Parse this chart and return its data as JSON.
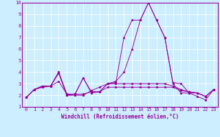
{
  "xlabel": "Windchill (Refroidissement éolien,°C)",
  "bg_color": "#cceeff",
  "line_color": "#990099",
  "grid_color": "#aaddcc",
  "xlim": [
    -0.5,
    23.5
  ],
  "ylim": [
    1,
    10
  ],
  "xticks": [
    0,
    1,
    2,
    3,
    4,
    5,
    6,
    7,
    8,
    9,
    10,
    11,
    12,
    13,
    14,
    15,
    16,
    17,
    18,
    19,
    20,
    21,
    22,
    23
  ],
  "yticks": [
    1,
    2,
    3,
    4,
    5,
    6,
    7,
    8,
    9,
    10
  ],
  "series": [
    [
      1.8,
      2.5,
      2.8,
      2.8,
      4.0,
      2.0,
      2.1,
      3.5,
      2.2,
      2.3,
      3.0,
      3.2,
      4.0,
      6.0,
      8.5,
      10.0,
      8.5,
      7.0,
      3.0,
      2.2,
      2.2,
      1.9,
      1.6,
      2.5
    ],
    [
      1.8,
      2.5,
      2.8,
      2.8,
      3.9,
      2.0,
      2.0,
      2.0,
      2.4,
      2.7,
      3.0,
      3.1,
      7.0,
      8.5,
      8.5,
      10.0,
      8.5,
      7.0,
      3.1,
      3.0,
      2.2,
      2.2,
      1.9,
      2.5
    ],
    [
      1.8,
      2.5,
      2.7,
      2.8,
      4.0,
      2.1,
      2.1,
      3.5,
      2.3,
      2.3,
      3.0,
      3.0,
      3.0,
      3.0,
      3.0,
      3.0,
      3.0,
      3.0,
      2.8,
      2.5,
      2.3,
      2.2,
      1.9,
      2.5
    ],
    [
      1.8,
      2.5,
      2.7,
      2.8,
      3.2,
      2.1,
      2.1,
      2.1,
      2.3,
      2.3,
      2.7,
      2.7,
      2.7,
      2.7,
      2.7,
      2.7,
      2.7,
      2.7,
      2.7,
      2.4,
      2.3,
      2.2,
      1.9,
      2.5
    ]
  ],
  "tick_fontsize": 5,
  "xlabel_fontsize": 5.5
}
